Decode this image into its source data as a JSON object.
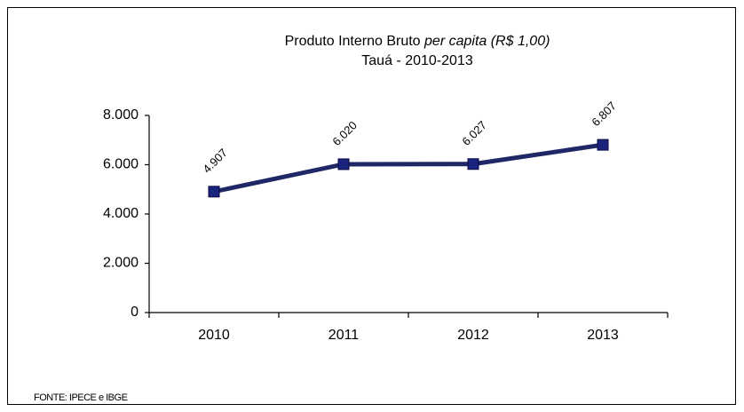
{
  "chart_data": {
    "type": "line",
    "title": "Produto Interno Bruto",
    "title_italic": "per capita (R$ 1,00)",
    "subtitle": "Tauá - 2010-2013",
    "source": "FONTE: IPECE e IBGE",
    "categories": [
      "2010",
      "2011",
      "2012",
      "2013"
    ],
    "series": [
      {
        "color": "#1f2766",
        "marker_color": "#1a237e",
        "values": [
          4907,
          6020,
          6027,
          6807
        ],
        "value_labels": [
          "4.907",
          "6.020",
          "6.027",
          "6.807"
        ]
      }
    ],
    "ylim": [
      0,
      8000
    ],
    "yticks": [
      0,
      {
        "value": 2000,
        "label": "2.000"
      },
      {
        "value": 4000,
        "label": "4.000"
      },
      {
        "value": 6000,
        "label": "6.000"
      },
      {
        "value": 8000,
        "label": "8.000"
      }
    ],
    "grid": false
  }
}
